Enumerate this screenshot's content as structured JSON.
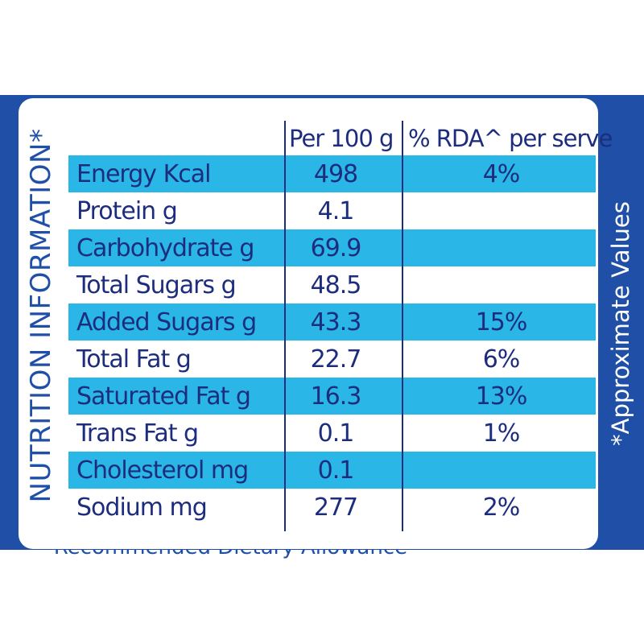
{
  "side_title": "NUTRITION INFORMATION*",
  "side_note": "*Approximate Values",
  "headers": {
    "nutrient": "",
    "per100": "Per 100 g",
    "rda": "% RDA^ per serve"
  },
  "rows": [
    {
      "nutrient": "Energy Kcal",
      "per100": "498",
      "rda": "4%"
    },
    {
      "nutrient": "Protein g",
      "per100": "4.1",
      "rda": ""
    },
    {
      "nutrient": "Carbohydrate g",
      "per100": "69.9",
      "rda": ""
    },
    {
      "nutrient": "Total Sugars g",
      "per100": "48.5",
      "rda": ""
    },
    {
      "nutrient": "Added Sugars g",
      "per100": "43.3",
      "rda": "15%"
    },
    {
      "nutrient": "Total Fat g",
      "per100": "22.7",
      "rda": "6%"
    },
    {
      "nutrient": "Saturated Fat g",
      "per100": "16.3",
      "rda": "13%"
    },
    {
      "nutrient": "Trans Fat g",
      "per100": "0.1",
      "rda": "1%"
    },
    {
      "nutrient": "Cholesterol mg",
      "per100": "0.1",
      "rda": ""
    },
    {
      "nutrient": "Sodium mg",
      "per100": "277",
      "rda": "2%"
    }
  ],
  "footer_note": "^Recommended Dietary Allowance",
  "colors": {
    "panel_blue": "#1f4fa6",
    "row_cyan": "#2bb6e8",
    "text_navy": "#1d2d7d"
  }
}
